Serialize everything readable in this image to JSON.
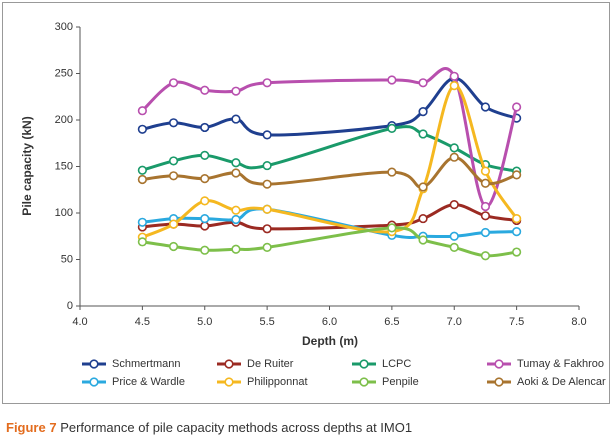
{
  "chart_data": {
    "type": "line",
    "x_label": "Depth (m)",
    "y_label": "Pile capacity (kN)",
    "x": [
      4.5,
      4.75,
      5.0,
      5.25,
      5.5,
      6.5,
      6.75,
      7.0,
      7.25,
      7.5
    ],
    "xlim": [
      4,
      8
    ],
    "xticks": [
      {
        "value": 4,
        "label": "4.0"
      },
      4.5,
      {
        "value": 5,
        "label": "5.0"
      },
      5.5,
      {
        "value": 6,
        "label": "6.0"
      },
      6.5,
      {
        "value": 7,
        "label": "7.0"
      },
      7.5,
      {
        "value": 8,
        "label": "8.0"
      }
    ],
    "ylim": [
      0,
      300
    ],
    "yticks": [
      0,
      50,
      100,
      150,
      200,
      250,
      300
    ],
    "grid": false,
    "series": [
      {
        "name": "Schmertmann",
        "color": "#1f3f8f",
        "values": [
          190,
          197,
          192,
          201,
          184,
          194,
          209,
          245,
          214,
          202
        ]
      },
      {
        "name": "De Ruiter",
        "color": "#9b2a22",
        "values": [
          85,
          88,
          86,
          90,
          83,
          87,
          94,
          109,
          97,
          92
        ]
      },
      {
        "name": "LCPC",
        "color": "#1a9a6a",
        "values": [
          146,
          156,
          162,
          154,
          151,
          191,
          185,
          170,
          152,
          145
        ]
      },
      {
        "name": "Tumay & Fakhroo",
        "color": "#b84fae",
        "values": [
          210,
          240,
          232,
          231,
          240,
          243,
          240,
          247,
          107,
          214
        ]
      },
      {
        "name": "Price & Wardle",
        "color": "#2aa9df",
        "values": [
          90,
          94,
          94,
          93,
          104,
          76,
          75,
          75,
          79,
          80
        ]
      },
      {
        "name": "Philipponnat",
        "color": "#f5b820",
        "values": [
          74,
          88,
          113,
          103,
          104,
          80,
          126,
          237,
          145,
          94
        ]
      },
      {
        "name": "Penpile",
        "color": "#7dbf4a",
        "values": [
          69,
          64,
          60,
          61,
          63,
          84,
          71,
          63,
          54,
          58
        ]
      },
      {
        "name": "Aoki & De Alencar",
        "color": "#a8742f",
        "values": [
          136,
          140,
          137,
          143,
          131,
          144,
          128,
          160,
          132,
          141
        ]
      }
    ]
  },
  "caption": {
    "label": "Figure 7",
    "text": "Performance of pile capacity methods across depths at IMO1"
  }
}
